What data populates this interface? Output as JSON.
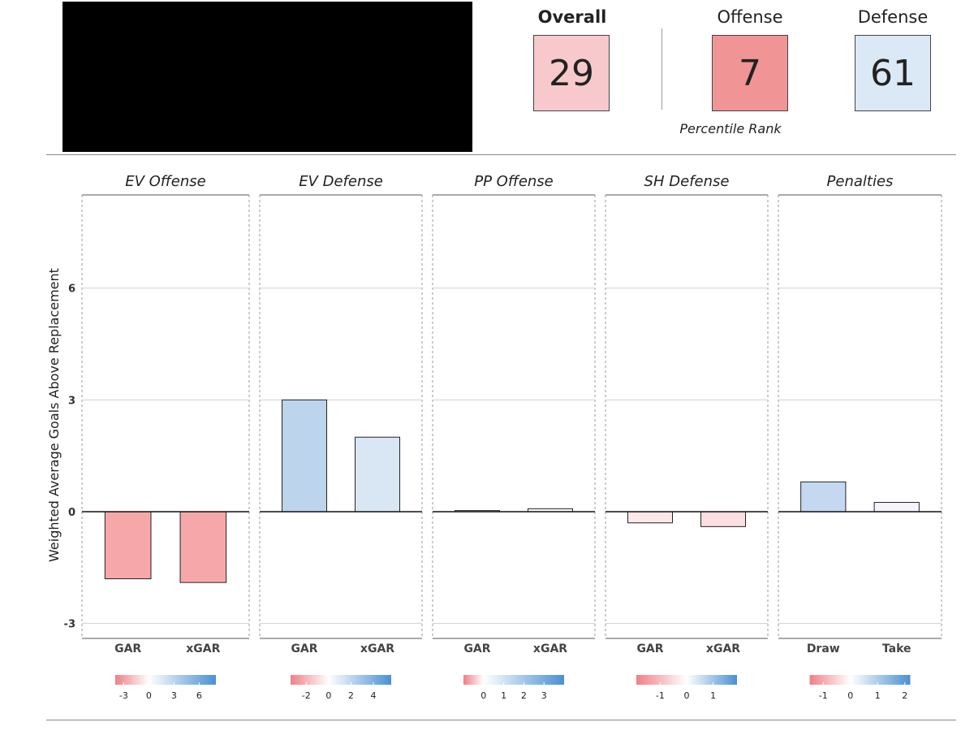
{
  "ranks": {
    "overall": {
      "label": "Overall",
      "value": "29",
      "color": "#f8c9cc"
    },
    "offense": {
      "label": "Offense",
      "value": "7",
      "color": "#f09496"
    },
    "defense": {
      "label": "Defense",
      "value": "61",
      "color": "#dbe8f6"
    },
    "caption": "Percentile Rank"
  },
  "chart_data": {
    "type": "bar",
    "ylabel": "Weighted Average Goals Above Replacement",
    "ylim": [
      -3.4,
      8.5
    ],
    "yticks": [
      -3,
      0,
      3,
      6
    ],
    "grid": true,
    "facets": [
      {
        "title": "EV Offense",
        "categories": [
          "GAR",
          "xGAR"
        ],
        "values": [
          -1.8,
          -1.9
        ],
        "colors": [
          "#f6a7aa",
          "#f6a7aa"
        ],
        "legend": {
          "min": -4,
          "max": 8,
          "ticks": [
            -3,
            0,
            3,
            6
          ]
        }
      },
      {
        "title": "EV Defense",
        "categories": [
          "GAR",
          "xGAR"
        ],
        "values": [
          3.0,
          2.0
        ],
        "colors": [
          "#bcd5ed",
          "#d9e7f5"
        ],
        "legend": {
          "min": -3.4,
          "max": 5.6,
          "ticks": [
            -2,
            0,
            2,
            4
          ]
        }
      },
      {
        "title": "PP Offense",
        "categories": [
          "GAR",
          "xGAR"
        ],
        "values": [
          0.03,
          0.08
        ],
        "colors": [
          "#f3f6fb",
          "#f7f9fc"
        ],
        "legend": {
          "min": -1,
          "max": 4,
          "ticks": [
            0,
            1,
            2,
            3
          ]
        }
      },
      {
        "title": "SH Defense",
        "categories": [
          "GAR",
          "xGAR"
        ],
        "values": [
          -0.3,
          -0.4
        ],
        "colors": [
          "#fde8e9",
          "#fbdfe0"
        ],
        "legend": {
          "min": -1.9,
          "max": 1.9,
          "ticks": [
            -1,
            0,
            1
          ]
        }
      },
      {
        "title": "Penalties",
        "categories": [
          "Draw",
          "Take"
        ],
        "values": [
          0.8,
          0.25
        ],
        "colors": [
          "#c4d9ef",
          "#f4f4fd"
        ],
        "legend": {
          "min": -1.5,
          "max": 2.2,
          "ticks": [
            -1,
            0,
            1,
            2
          ]
        }
      }
    ]
  }
}
